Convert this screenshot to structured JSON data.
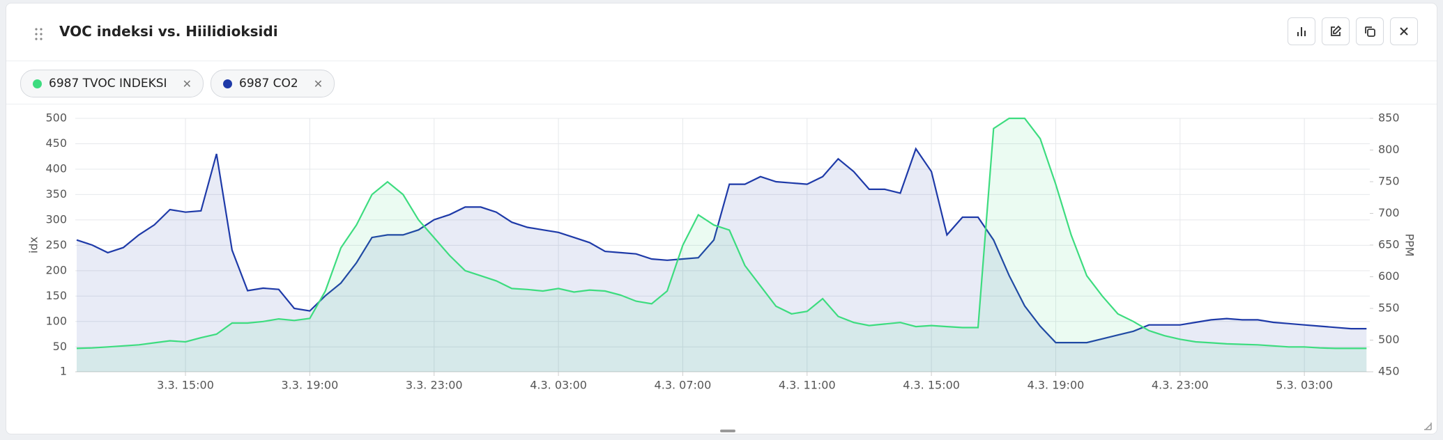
{
  "header": {
    "title": "VOC indeksi vs. Hiilidioksidi"
  },
  "chart_data": {
    "type": "line",
    "categories": [
      null,
      null,
      null,
      null,
      null,
      null,
      null,
      "3.3. 15:00",
      null,
      null,
      null,
      null,
      null,
      null,
      null,
      "3.3. 19:00",
      null,
      null,
      null,
      null,
      null,
      null,
      null,
      "3.3. 23:00",
      null,
      null,
      null,
      null,
      null,
      null,
      null,
      "4.3. 03:00",
      null,
      null,
      null,
      null,
      null,
      null,
      null,
      "4.3. 07:00",
      null,
      null,
      null,
      null,
      null,
      null,
      null,
      "4.3. 11:00",
      null,
      null,
      null,
      null,
      null,
      null,
      null,
      "4.3. 15:00",
      null,
      null,
      null,
      null,
      null,
      null,
      null,
      "4.3. 19:00",
      null,
      null,
      null,
      null,
      null,
      null,
      null,
      "4.3. 23:00",
      null,
      null,
      null,
      null,
      null,
      null,
      null,
      "5.3. 03:00",
      null,
      null,
      null,
      null
    ],
    "series": [
      {
        "name": "6987 TVOC INDEKSI",
        "color": "#3ddc7f",
        "axis": "y",
        "values": [
          47,
          48,
          50,
          52,
          54,
          58,
          62,
          60,
          68,
          75,
          97,
          97,
          100,
          105,
          102,
          106,
          160,
          245,
          290,
          350,
          375,
          350,
          300,
          265,
          230,
          200,
          190,
          180,
          165,
          163,
          160,
          165,
          158,
          162,
          160,
          152,
          140,
          135,
          160,
          250,
          310,
          290,
          280,
          210,
          170,
          130,
          115,
          120,
          145,
          110,
          98,
          92,
          95,
          98,
          90,
          92,
          90,
          88,
          88,
          480,
          500,
          500,
          460,
          370,
          270,
          190,
          150,
          115,
          100,
          82,
          72,
          65,
          60,
          58,
          56,
          55,
          54,
          52,
          50,
          50,
          48,
          47,
          47,
          47
        ]
      },
      {
        "name": "6987 CO2",
        "color": "#1e3aa8",
        "axis": "y2",
        "values": [
          658,
          650,
          638,
          646,
          666,
          682,
          706,
          702,
          704,
          794,
          642,
          578,
          582,
          580,
          550,
          546,
          570,
          590,
          622,
          662,
          666,
          666,
          674,
          690,
          698,
          710,
          710,
          702,
          686,
          678,
          674,
          670,
          662,
          654,
          640,
          638,
          636,
          628,
          626,
          628,
          630,
          658,
          746,
          746,
          758,
          750,
          748,
          746,
          758,
          786,
          766,
          738,
          738,
          732,
          802,
          766,
          666,
          694,
          694,
          658,
          602,
          554,
          522,
          496,
          496,
          496,
          502,
          508,
          514,
          524,
          524,
          524,
          528,
          532,
          534,
          532,
          532,
          528,
          526,
          524,
          522,
          520,
          518,
          518
        ]
      }
    ],
    "y_label": "idx",
    "y2_label": "PPM",
    "ylim": [
      1,
      500
    ],
    "yticks": [
      1,
      50,
      100,
      150,
      200,
      250,
      300,
      350,
      400,
      450,
      500
    ],
    "y2lim": [
      450,
      850
    ],
    "y2ticks": [
      450,
      500,
      550,
      600,
      650,
      700,
      750,
      800,
      850
    ],
    "grid": true
  }
}
